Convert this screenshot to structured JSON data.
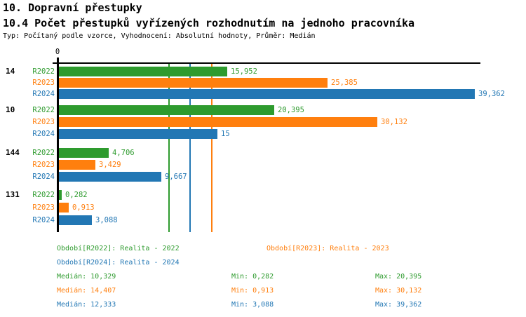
{
  "header": {
    "title": "10. Dopravní přestupky",
    "subtitle": "10.4 Počet přestupků vyřízených rozhodnutím na jednoho pracovníka",
    "meta": "Typ: Počítaný podle vzorce, Vyhodnocení: Absolutní hodnoty, Průměr: Medián"
  },
  "colors": {
    "r2022": "#2e9b2e",
    "r2023": "#ff7f0e",
    "r2024": "#2277b4"
  },
  "chart_data": {
    "type": "bar",
    "orientation": "horizontal",
    "x_axis_zero_label": "0",
    "xlim": [
      0,
      39.9
    ],
    "series_names": [
      "R2022",
      "R2023",
      "R2024"
    ],
    "groups": [
      {
        "label": "14",
        "bars": [
          {
            "series": "R2022",
            "value": 15.952,
            "display": "15,952"
          },
          {
            "series": "R2023",
            "value": 25.385,
            "display": "25,385"
          },
          {
            "series": "R2024",
            "value": 39.362,
            "display": "39,362"
          }
        ]
      },
      {
        "label": "10",
        "bars": [
          {
            "series": "R2022",
            "value": 20.395,
            "display": "20,395"
          },
          {
            "series": "R2023",
            "value": 30.132,
            "display": "30,132"
          },
          {
            "series": "R2024",
            "value": 15,
            "display": "15"
          }
        ]
      },
      {
        "label": "144",
        "bars": [
          {
            "series": "R2022",
            "value": 4.706,
            "display": "4,706"
          },
          {
            "series": "R2023",
            "value": 3.429,
            "display": "3,429"
          },
          {
            "series": "R2024",
            "value": 9.667,
            "display": "9,667"
          }
        ]
      },
      {
        "label": "131",
        "bars": [
          {
            "series": "R2022",
            "value": 0.282,
            "display": "0,282"
          },
          {
            "series": "R2023",
            "value": 0.913,
            "display": "0,913"
          },
          {
            "series": "R2024",
            "value": 3.088,
            "display": "3,088"
          }
        ]
      }
    ],
    "median_lines": [
      {
        "series": "R2022",
        "value": 10.329
      },
      {
        "series": "R2023",
        "value": 14.407
      },
      {
        "series": "R2024",
        "value": 12.333
      }
    ]
  },
  "legend": [
    {
      "series": "R2022",
      "text": "Období[R2022]: Realita - 2022"
    },
    {
      "series": "R2023",
      "text": "Období[R2023]: Realita - 2023"
    },
    {
      "series": "R2024",
      "text": "Období[R2024]: Realita - 2024"
    }
  ],
  "stats": [
    {
      "series": "R2022",
      "median": "Medián: 10,329",
      "min": "Min: 0,282",
      "max": "Max: 20,395"
    },
    {
      "series": "R2023",
      "median": "Medián: 14,407",
      "min": "Min: 0,913",
      "max": "Max: 30,132"
    },
    {
      "series": "R2024",
      "median": "Medián: 12,333",
      "min": "Min: 3,088",
      "max": "Max: 39,362"
    }
  ]
}
